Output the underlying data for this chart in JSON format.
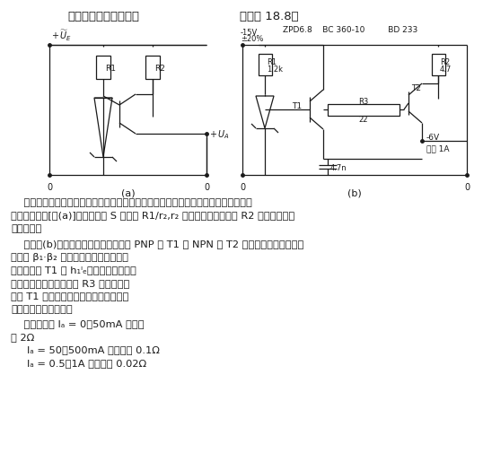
{
  "bg_color": "#ffffff",
  "text_color": "#1a1a1a",
  "circuit_color": "#1a1a1a",
  "title_bold": "最简单的串联稳压电路",
  "title_normal": "（如图 18.8）",
  "comp_label": "ZPD6.8    BC 360-10         BD 233",
  "label_a": "(a)",
  "label_b": "(b)",
  "voltage_label": "-15V\n±20%",
  "p1_lines": [
    "    将稳压管接在晶体管基极上使基极电压稳定，输出电压从发射极取出则构成最简单的",
    "串联稳压电路[图(a)]。稳压系数 S 决定于 R1/r₂,r₂ 为稳压管内阻。电阻 R2 用于降低晶体",
    "管的损耗。"
  ],
  "p2_lines": [
    "    采用图(b)电路可降低输出电阻，这里 PNP 管 T1 和 NPN 管 T2 连接成环形，相当于一",
    "个具有 β₁·β₂ 放大系数的晶体管，而输",
    "入电阻仅为 T1 的 h₁ᴵₑ。通过这种办法使",
    "输出电阻大为降低。电阻 R3 用于保护晶",
    "体管 T1 防止过载，电容用于防止振荡。",
    "该电路平均输出电阻："
  ],
  "p3_lines": [
    "    在输出电流 Iₐ = 0～50mA 范围内",
    "为 2Ω"
  ],
  "p4_line": "    Iₐ = 50～500mA 范围内为 0.1Ω",
  "p5_line": "    Iₐ = 0.5～1A 范围内为 0.02Ω"
}
